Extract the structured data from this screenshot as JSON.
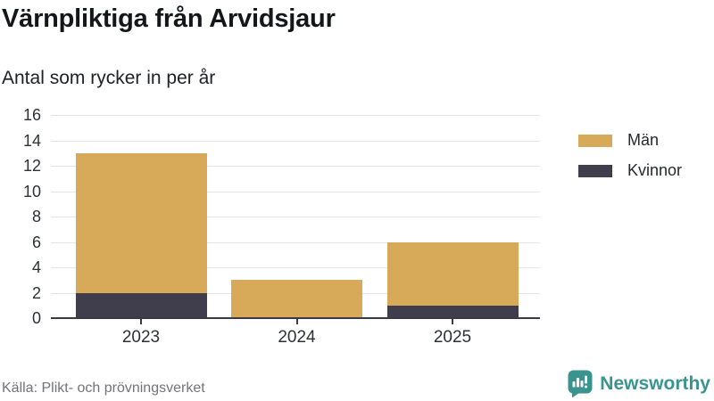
{
  "header": {
    "title": "Värnpliktiga från Arvidsjaur",
    "subtitle": "Antal som rycker in per år"
  },
  "chart_data": {
    "type": "bar",
    "stacked": true,
    "categories": [
      "2023",
      "2024",
      "2025"
    ],
    "series": [
      {
        "name": "Män",
        "color": "#d7aa59",
        "values": [
          11,
          3,
          5
        ]
      },
      {
        "name": "Kvinnor",
        "color": "#403e4c",
        "values": [
          2,
          0,
          1
        ]
      }
    ],
    "stack_bottom_to_top": [
      "Kvinnor",
      "Män"
    ],
    "totals": [
      13,
      3,
      6
    ],
    "title": "Värnpliktiga från Arvidsjaur",
    "subtitle": "Antal som rycker in per år",
    "xlabel": "",
    "ylabel": "",
    "ylim": [
      0,
      16
    ],
    "ytick_step": 2,
    "grid": true,
    "legend_position": "top-right"
  },
  "footer": {
    "source": "Källa: Plikt- och prövningsverket",
    "brand": "Newsworthy"
  },
  "colors": {
    "man": "#d7aa59",
    "kvinnor": "#403e4c",
    "grid": "#e4e4e4",
    "axis": "#3a3946",
    "accent_teal": "#399490",
    "muted_text": "#72727c"
  }
}
